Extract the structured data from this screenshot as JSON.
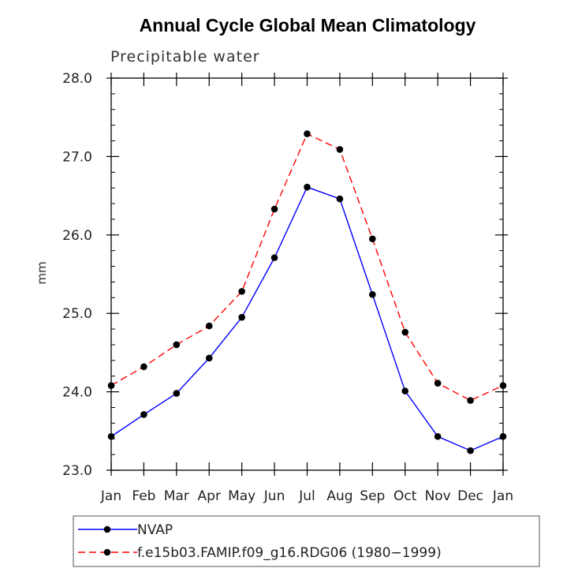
{
  "chart_data": {
    "type": "line",
    "title": "Annual Cycle Global Mean Climatology",
    "subtitle": "Precipitable water",
    "ylabel": "mm",
    "xlabel": "",
    "categories": [
      "Jan",
      "Feb",
      "Mar",
      "Apr",
      "May",
      "Jun",
      "Jul",
      "Aug",
      "Sep",
      "Oct",
      "Nov",
      "Dec",
      "Jan"
    ],
    "ylim": [
      23.0,
      28.0
    ],
    "yticks": [
      "23.0",
      "24.0",
      "25.0",
      "26.0",
      "27.0",
      "28.0"
    ],
    "grid": false,
    "legend_position": "bottom",
    "series": [
      {
        "name": "NVAP",
        "color": "#0000ff",
        "line_style": "solid",
        "marker": "dot",
        "values": [
          23.43,
          23.71,
          23.98,
          24.43,
          24.95,
          25.71,
          26.61,
          26.46,
          25.24,
          24.01,
          23.43,
          23.25,
          23.43
        ]
      },
      {
        "name": "f.e15b03.FAMIP.f09_g16.RDG06 (1980−1999)",
        "color": "#ff0000",
        "line_style": "dashed",
        "marker": "dot",
        "values": [
          24.08,
          24.32,
          24.6,
          24.84,
          25.28,
          26.33,
          27.29,
          27.09,
          25.95,
          24.76,
          24.11,
          23.89,
          24.08
        ]
      }
    ]
  }
}
